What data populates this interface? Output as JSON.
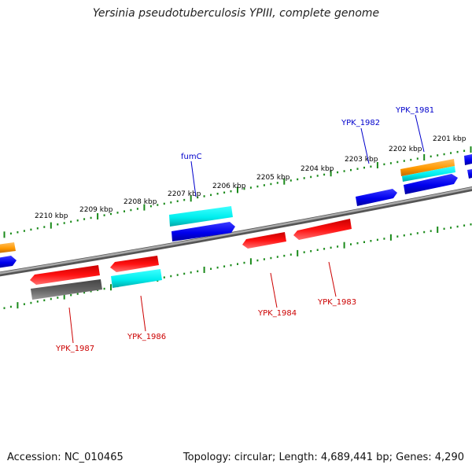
{
  "header": {
    "title": "Yersinia pseudotuberculosis YPIII, complete genome"
  },
  "footer": {
    "accession": "Accession: NC_010465",
    "summary": "Topology: circular; Length: 4,689,441 bp; Genes: 4,290"
  },
  "colors": {
    "backbone": "#888888",
    "tick": "#1a8a1a",
    "forward_label": "#0000cc",
    "reverse_label": "#cc0000"
  },
  "scale_labels": [
    "2210 kbp",
    "2209 kbp",
    "2208 kbp",
    "2207 kbp",
    "2206 kbp",
    "2205 kbp",
    "2204 kbp",
    "2203 kbp",
    "2202 kbp",
    "2201 kbp"
  ],
  "gene_labels": {
    "fumC": "fumC",
    "YPK_1982": "YPK_1982",
    "YPK_1981": "YPK_1981",
    "YPK_1984": "YPK_1984",
    "YPK_1983": "YPK_1983",
    "YPK_1987": "YPK_1987",
    "YPK_1986": "YPK_1986"
  },
  "features": [
    {
      "id": "orange-left",
      "color": "orange"
    },
    {
      "id": "blue-left",
      "color": "blue"
    },
    {
      "id": "fumC-cds",
      "color": "cyan"
    },
    {
      "id": "fumC-gene",
      "color": "blue"
    },
    {
      "id": "blue-mid",
      "color": "blue"
    },
    {
      "id": "YPK_1981-cds",
      "color": "orange"
    },
    {
      "id": "YPK_1981-cds2",
      "color": "cyan"
    },
    {
      "id": "YPK_1981-gene",
      "color": "blue"
    },
    {
      "id": "YPK_1984-gene",
      "color": "red"
    },
    {
      "id": "YPK_1983-gene",
      "color": "red"
    },
    {
      "id": "YPK_1987-gene",
      "color": "red"
    },
    {
      "id": "YPK_1987-cds",
      "color": "gray"
    },
    {
      "id": "YPK_1986-gene",
      "color": "red"
    },
    {
      "id": "YPK_1986-cds",
      "color": "cyan"
    }
  ]
}
